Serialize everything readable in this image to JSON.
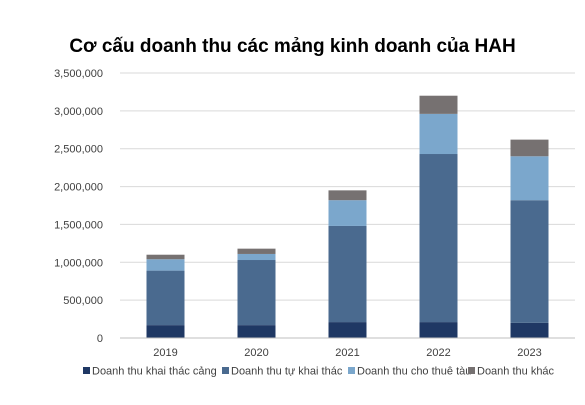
{
  "chart_data": {
    "type": "bar",
    "stacked": true,
    "title": "Cơ cấu doanh thu các mảng kinh doanh của HAH",
    "xlabel": "",
    "ylabel": "",
    "categories": [
      "2019",
      "2020",
      "2021",
      "2022",
      "2023"
    ],
    "ylim": [
      0,
      3500000
    ],
    "yticks": [
      0,
      500000,
      1000000,
      1500000,
      2000000,
      2500000,
      3000000,
      3500000
    ],
    "ytick_labels": [
      "0",
      "500,000",
      "1,000,000",
      "1,500,000",
      "2,000,000",
      "2,500,000",
      "3,000,000",
      "3,500,000"
    ],
    "grid": true,
    "legend_position": "bottom",
    "series": [
      {
        "name": "Doanh thu khai thác cảng",
        "color": "#1f3864",
        "values": [
          170000,
          170000,
          210000,
          210000,
          200000
        ]
      },
      {
        "name": "Doanh thu tự khai thác",
        "color": "#4a6a8f",
        "values": [
          720000,
          860000,
          1270000,
          2220000,
          1620000
        ]
      },
      {
        "name": "Doanh thu cho thuê tàu",
        "color": "#7ba7cc",
        "values": [
          150000,
          80000,
          340000,
          530000,
          580000
        ]
      },
      {
        "name": "Doanh thu khác",
        "color": "#767171",
        "values": [
          60000,
          70000,
          130000,
          240000,
          220000
        ]
      }
    ]
  }
}
